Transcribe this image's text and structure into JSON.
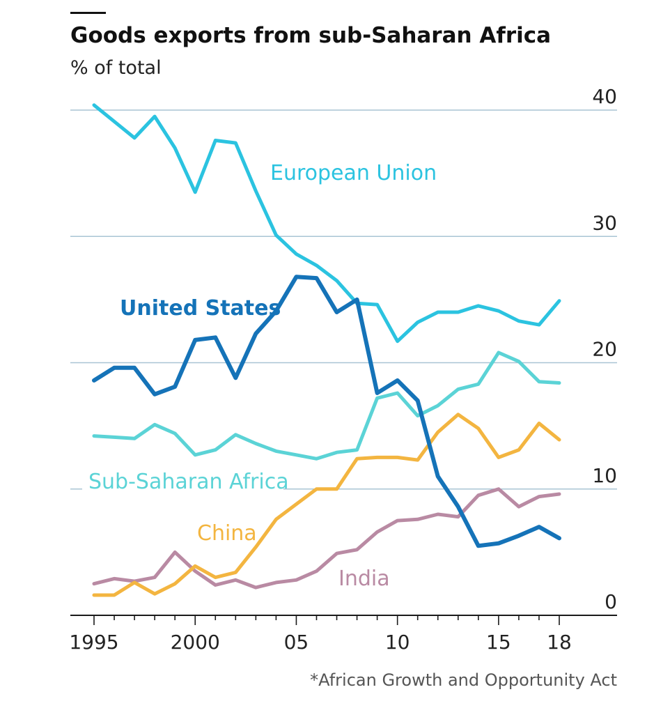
{
  "chart_data": {
    "type": "line",
    "title": "Goods exports from sub-Saharan Africa",
    "subtitle": "% of total",
    "footnote": "*African Growth and Opportunity Act",
    "xlabel": "",
    "ylabel": "",
    "x_range": [
      1995,
      2018
    ],
    "ylim": [
      0,
      40
    ],
    "y_ticks": [
      0,
      10,
      20,
      30,
      40
    ],
    "x_ticks": [
      {
        "value": 1995,
        "label": "1995"
      },
      {
        "value": 2000,
        "label": "2000"
      },
      {
        "value": 2005,
        "label": "05"
      },
      {
        "value": 2010,
        "label": "10"
      },
      {
        "value": 2015,
        "label": "15"
      },
      {
        "value": 2018,
        "label": "18"
      }
    ],
    "grid": true,
    "series": [
      {
        "name": "European Union",
        "color": "#2bc3e0",
        "x": [
          1995,
          1996,
          1997,
          1998,
          1999,
          2000,
          2001,
          2002,
          2003,
          2004,
          2005,
          2006,
          2007,
          2008,
          2009,
          2010,
          2011,
          2012,
          2013,
          2014,
          2015,
          2016,
          2017,
          2018
        ],
        "values": [
          40.4,
          39.1,
          37.8,
          39.5,
          37.0,
          33.5,
          37.6,
          37.4,
          33.6,
          30.1,
          28.6,
          27.7,
          26.5,
          24.7,
          24.6,
          21.7,
          23.2,
          24.0,
          24.0,
          24.5,
          24.1,
          23.3,
          23.0,
          24.9
        ]
      },
      {
        "name": "United States",
        "color": "#1573b8",
        "x": [
          1995,
          1996,
          1997,
          1998,
          1999,
          2000,
          2001,
          2002,
          2003,
          2004,
          2005,
          2006,
          2007,
          2008,
          2009,
          2010,
          2011,
          2012,
          2013,
          2014,
          2015,
          2016,
          2017,
          2018
        ],
        "values": [
          18.6,
          19.6,
          19.6,
          17.5,
          18.1,
          21.8,
          22.0,
          18.8,
          22.3,
          24.1,
          26.8,
          26.7,
          24.0,
          25.0,
          17.6,
          18.6,
          17.0,
          11.0,
          8.6,
          5.5,
          5.7,
          6.3,
          7.0,
          6.1
        ]
      },
      {
        "name": "Sub-Saharan Africa",
        "color": "#5bd3d6",
        "x": [
          1995,
          1996,
          1997,
          1998,
          1999,
          2000,
          2001,
          2002,
          2003,
          2004,
          2005,
          2006,
          2007,
          2008,
          2009,
          2010,
          2011,
          2012,
          2013,
          2014,
          2015,
          2016,
          2017,
          2018
        ],
        "values": [
          14.2,
          14.1,
          14.0,
          15.1,
          14.4,
          12.7,
          13.1,
          14.3,
          13.6,
          13.0,
          12.7,
          12.4,
          12.9,
          13.1,
          17.2,
          17.6,
          15.8,
          16.6,
          17.9,
          18.3,
          20.8,
          20.1,
          18.5,
          18.4
        ]
      },
      {
        "name": "China",
        "color": "#f3b540",
        "x": [
          1995,
          1996,
          1997,
          1998,
          1999,
          2000,
          2001,
          2002,
          2003,
          2004,
          2005,
          2006,
          2007,
          2008,
          2009,
          2010,
          2011,
          2012,
          2013,
          2014,
          2015,
          2016,
          2017,
          2018
        ],
        "values": [
          1.6,
          1.6,
          2.6,
          1.7,
          2.5,
          3.9,
          3.0,
          3.4,
          5.4,
          7.6,
          8.8,
          10.0,
          10.0,
          12.4,
          12.5,
          12.5,
          12.3,
          14.5,
          15.9,
          14.8,
          12.5,
          13.1,
          15.2,
          13.9
        ]
      },
      {
        "name": "India",
        "color": "#b98aa3",
        "x": [
          1995,
          1996,
          1997,
          1998,
          1999,
          2000,
          2001,
          2002,
          2003,
          2004,
          2005,
          2006,
          2007,
          2008,
          2009,
          2010,
          2011,
          2012,
          2013,
          2014,
          2015,
          2016,
          2017,
          2018
        ],
        "values": [
          2.5,
          2.9,
          2.7,
          3.0,
          5.0,
          3.5,
          2.4,
          2.8,
          2.2,
          2.6,
          2.8,
          3.5,
          4.9,
          5.2,
          6.6,
          7.5,
          7.6,
          8.0,
          7.8,
          9.5,
          10.0,
          8.6,
          9.4,
          9.6
        ]
      }
    ]
  }
}
